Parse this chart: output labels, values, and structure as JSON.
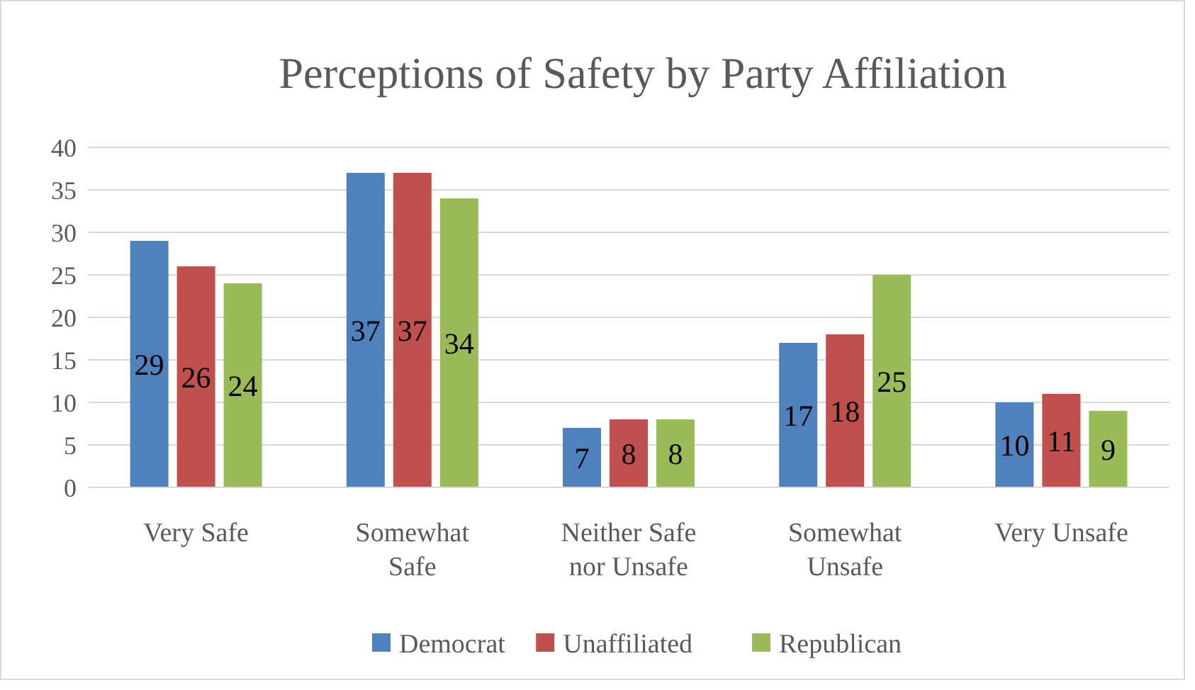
{
  "chart_data": {
    "type": "bar",
    "title": "Perceptions of Safety by Party Affiliation",
    "categories": [
      "Very Safe",
      "Somewhat Safe",
      "Neither Safe nor Unsafe",
      "Somewhat Unsafe",
      "Very Unsafe"
    ],
    "series": [
      {
        "name": "Democrat",
        "color": "#4f81bd",
        "values": [
          29,
          37,
          7,
          17,
          10
        ]
      },
      {
        "name": "Unaffiliated",
        "color": "#c0504d",
        "values": [
          26,
          37,
          8,
          18,
          11
        ]
      },
      {
        "name": "Republican",
        "color": "#9bbb59",
        "values": [
          24,
          34,
          8,
          25,
          9
        ]
      }
    ],
    "ylim": [
      0,
      40
    ],
    "yticks": [
      0,
      5,
      10,
      15,
      20,
      25,
      30,
      35,
      40
    ],
    "grid": "y",
    "legend": "bottom",
    "data_labels": true
  }
}
